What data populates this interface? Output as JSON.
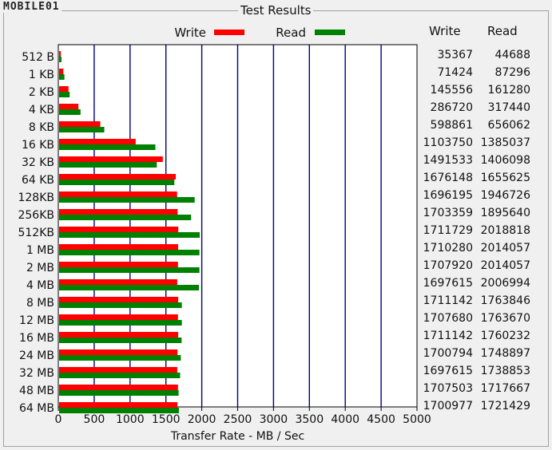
{
  "window": {
    "title": "Test Results",
    "logo_text": "MOBILE01"
  },
  "chart_data": {
    "type": "bar",
    "orientation": "horizontal",
    "categories": [
      "512 B",
      "1 KB",
      "2 KB",
      "4 KB",
      "8 KB",
      "16 KB",
      "32 KB",
      "64 KB",
      "128KB",
      "256KB",
      "512KB",
      "1 MB",
      "2 MB",
      "4 MB",
      "8 MB",
      "12 MB",
      "16 MB",
      "24 MB",
      "32 MB",
      "48 MB",
      "64 MB"
    ],
    "series": [
      {
        "name": "Write",
        "color": "#ff0000",
        "values": [
          35,
          70,
          142,
          280,
          585,
          1078,
          1457,
          1637,
          1656,
          1663,
          1672,
          1670,
          1668,
          1658,
          1671,
          1668,
          1671,
          1661,
          1658,
          1668,
          1661
        ]
      },
      {
        "name": "Read",
        "color": "#008000",
        "values": [
          44,
          85,
          158,
          310,
          641,
          1353,
          1373,
          1617,
          1901,
          1851,
          1971,
          1967,
          1967,
          1960,
          1722,
          1722,
          1719,
          1708,
          1698,
          1677,
          1681
        ]
      }
    ],
    "xlabel": "Transfer Rate - MB / Sec",
    "xlim": [
      0,
      5000
    ],
    "xticks": [
      "0",
      "500",
      "1000",
      "1500",
      "2000",
      "2500",
      "3000",
      "3500",
      "4000",
      "4500",
      "5000"
    ],
    "grid": "vertical",
    "legend": "top",
    "table": {
      "headers": [
        "Write",
        "Read"
      ],
      "rows": [
        [
          "35367",
          "44688"
        ],
        [
          "71424",
          "87296"
        ],
        [
          "145556",
          "161280"
        ],
        [
          "286720",
          "317440"
        ],
        [
          "598861",
          "656062"
        ],
        [
          "1103750",
          "1385037"
        ],
        [
          "1491533",
          "1406098"
        ],
        [
          "1676148",
          "1655625"
        ],
        [
          "1696195",
          "1946726"
        ],
        [
          "1703359",
          "1895640"
        ],
        [
          "1711729",
          "2018818"
        ],
        [
          "1710280",
          "2014057"
        ],
        [
          "1707920",
          "2014057"
        ],
        [
          "1697615",
          "2006994"
        ],
        [
          "1711142",
          "1763846"
        ],
        [
          "1707680",
          "1763670"
        ],
        [
          "1711142",
          "1760232"
        ],
        [
          "1700794",
          "1748897"
        ],
        [
          "1697615",
          "1738853"
        ],
        [
          "1707503",
          "1717667"
        ],
        [
          "1700977",
          "1721429"
        ]
      ]
    }
  }
}
